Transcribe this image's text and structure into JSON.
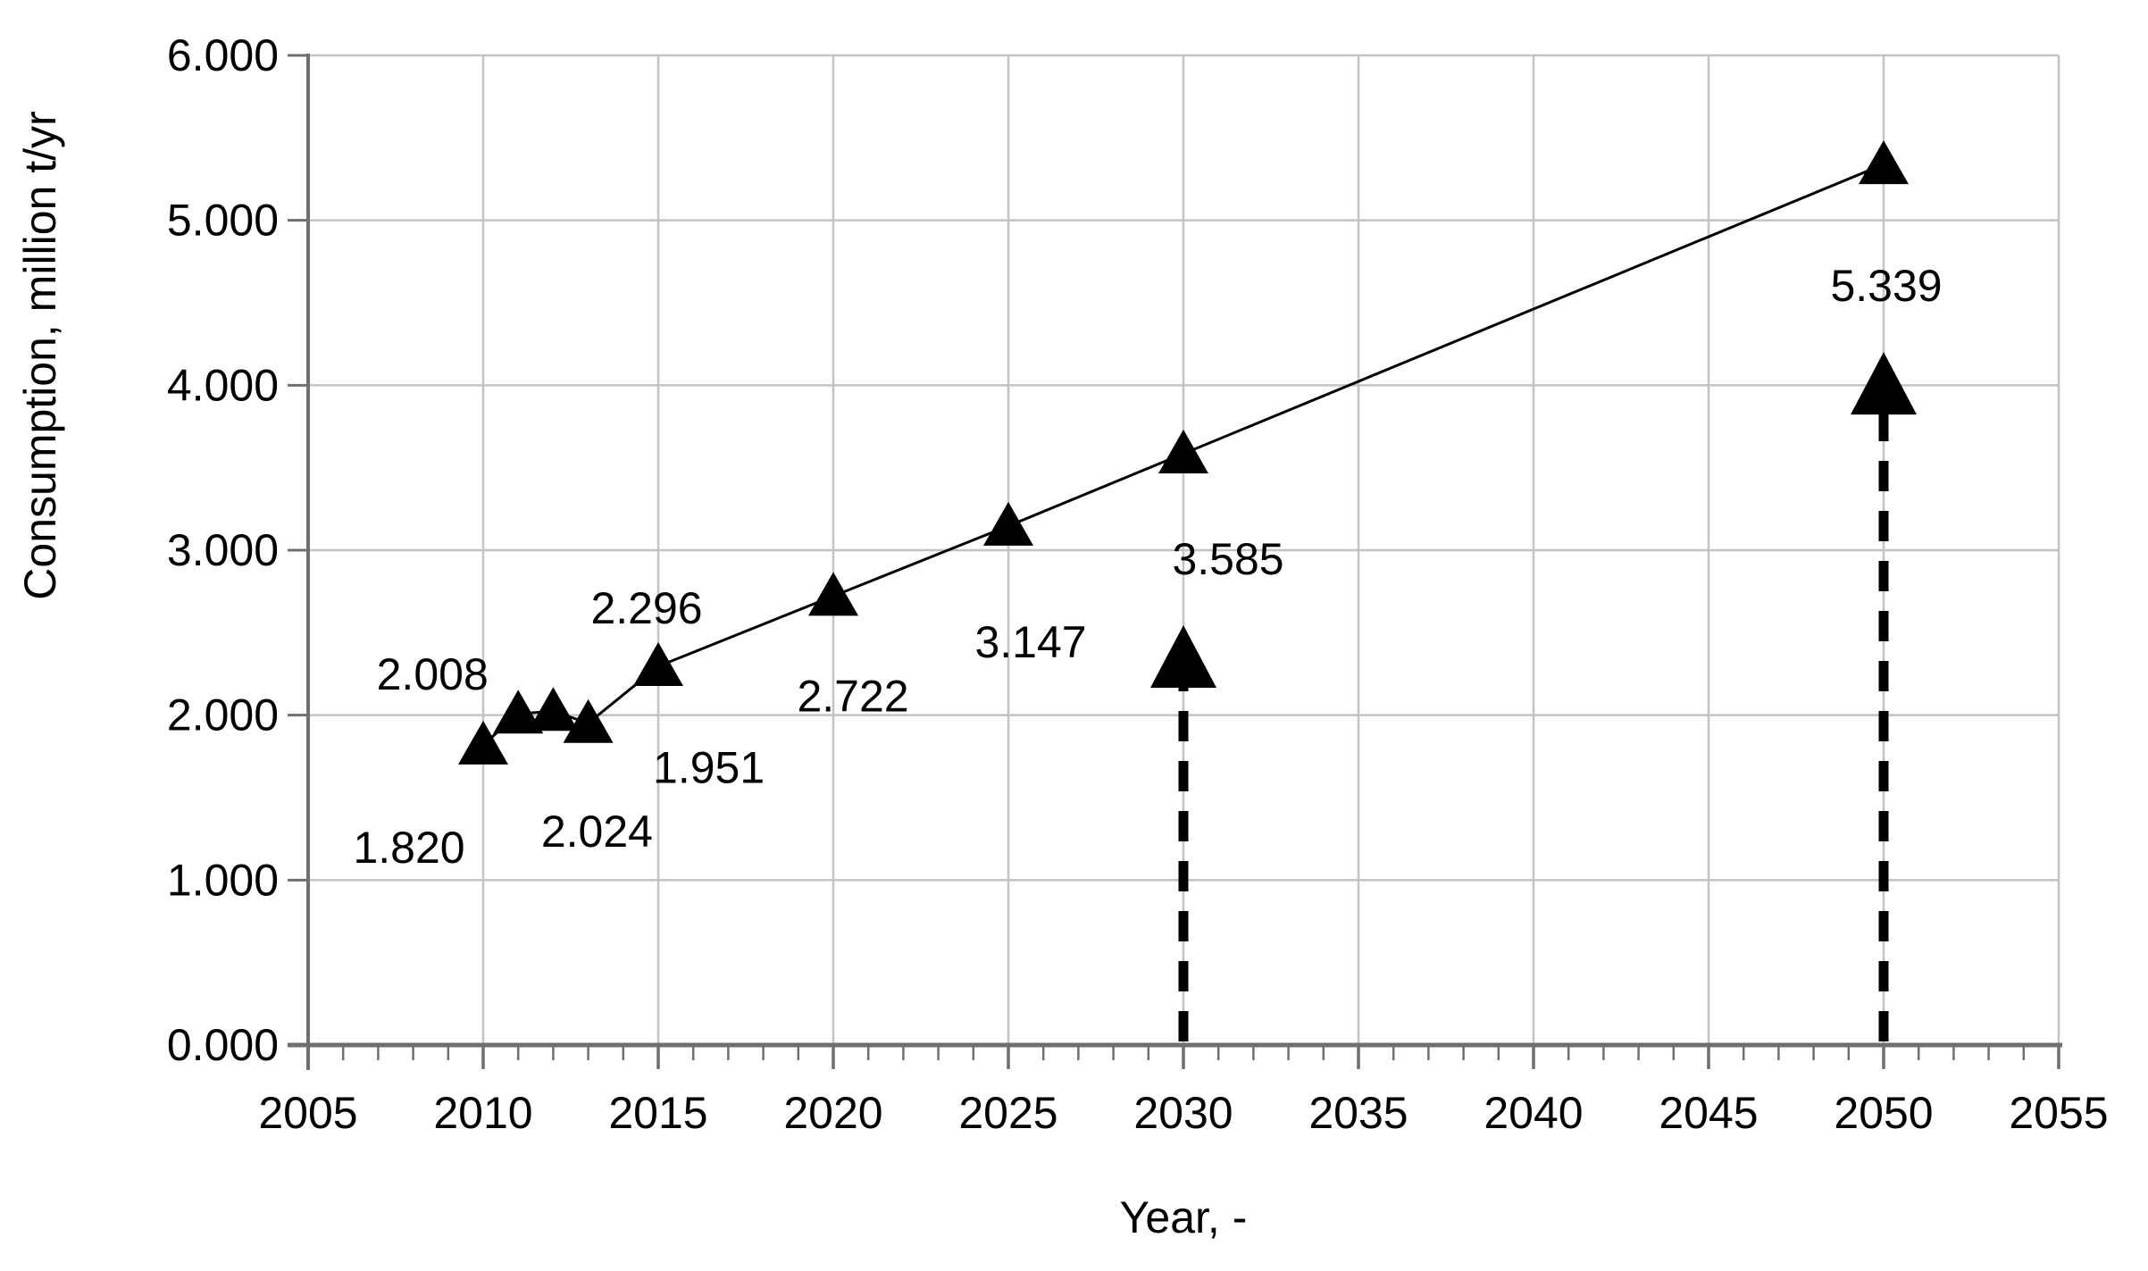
{
  "chart_data": {
    "type": "line",
    "title": "",
    "xlabel": "Year, -",
    "ylabel": "Consumption, million t/yr",
    "xlim": [
      2005,
      2055
    ],
    "ylim": [
      0,
      6
    ],
    "x_tick_labels": [
      "2005",
      "2010",
      "2015",
      "2020",
      "2025",
      "2030",
      "2035",
      "2040",
      "2045",
      "2050",
      "2055"
    ],
    "y_tick_labels": [
      "0.000",
      "1.000",
      "2.000",
      "3.000",
      "4.000",
      "5.000",
      "6.000"
    ],
    "grid": true,
    "legend_position": "none",
    "series": [
      {
        "name": "Consumption",
        "marker": "filled-triangle-up",
        "line_style": "solid",
        "points": [
          {
            "year": 2010,
            "value": 1.82,
            "label": "1.820"
          },
          {
            "year": 2011,
            "value": 2.008,
            "label": "2.008"
          },
          {
            "year": 2012,
            "value": 2.024,
            "label": "2.024"
          },
          {
            "year": 2013,
            "value": 1.951,
            "label": "1.951"
          },
          {
            "year": 2015,
            "value": 2.296,
            "label": "2.296"
          },
          {
            "year": 2020,
            "value": 2.722,
            "label": "2.722"
          },
          {
            "year": 2025,
            "value": 3.147,
            "label": "3.147"
          },
          {
            "year": 2030,
            "value": 3.585,
            "label": "3.585"
          },
          {
            "year": 2050,
            "value": 5.339,
            "label": "5.339"
          }
        ]
      }
    ],
    "annotations": [
      {
        "type": "dashed-up-arrow",
        "year": 2030,
        "points_to_label": "3.585"
      },
      {
        "type": "dashed-up-arrow",
        "year": 2050,
        "points_to_label": "5.339"
      }
    ],
    "colors": {
      "ink": "#000000",
      "axis": "#6f6f6f",
      "grid": "#c3c3c3",
      "background": "#ffffff"
    }
  }
}
